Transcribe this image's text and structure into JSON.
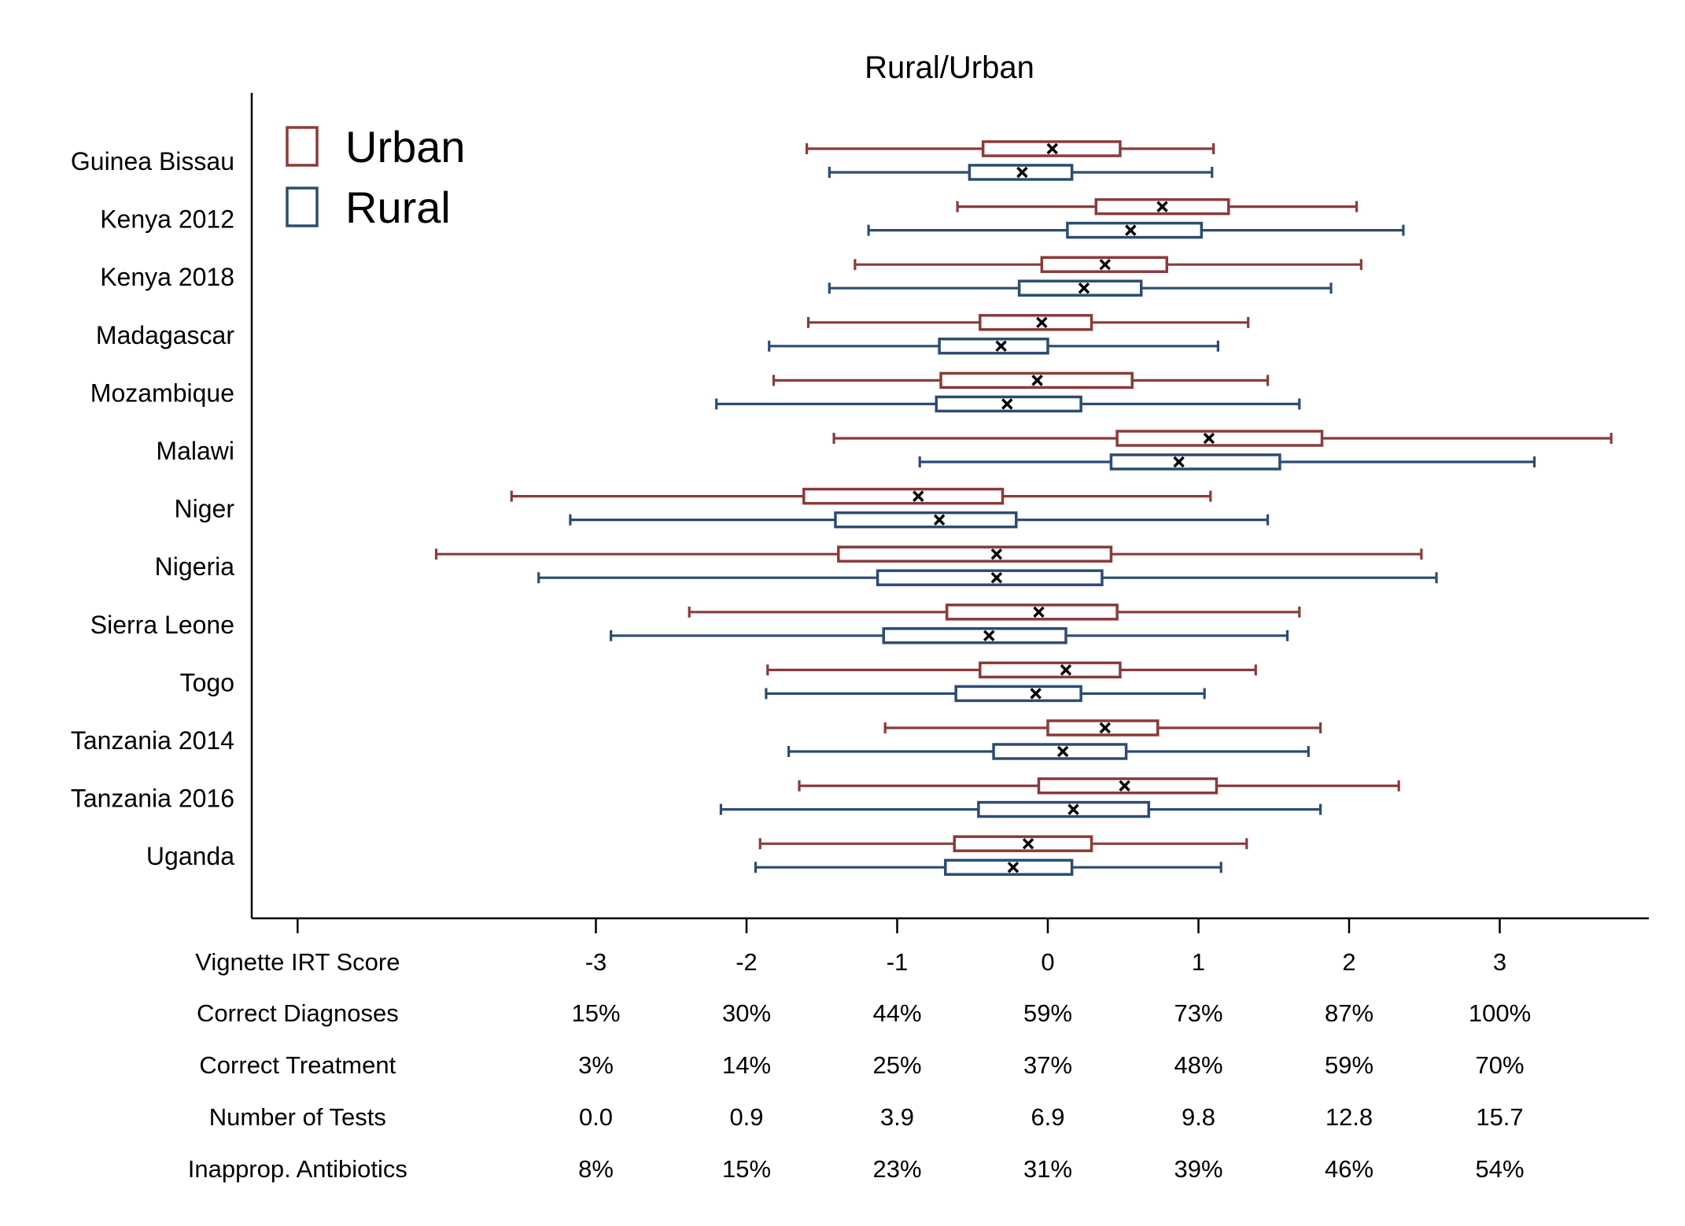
{
  "chart_data": {
    "type": "boxplot",
    "title": "Rural/Urban",
    "orientation": "horizontal",
    "xlim": [
      -4.98,
      4.3
    ],
    "colors": {
      "Urban": "#8b3a3a",
      "Rural": "#2b4c73"
    },
    "legend": {
      "placement": "top-left",
      "entries": [
        {
          "label": "Urban",
          "color": "#8b3a3a"
        },
        {
          "label": "Rural",
          "color": "#2b4c73"
        }
      ]
    },
    "marker": "x (mean)",
    "categories": [
      "Guinea Bissau",
      "Kenya 2012",
      "Kenya 2018",
      "Madagascar",
      "Mozambique",
      "Malawi",
      "Niger",
      "Nigeria",
      "Sierra Leone",
      "Togo",
      "Tanzania 2014",
      "Tanzania 2016",
      "Uganda"
    ],
    "series": [
      {
        "name": "Urban",
        "boxes": [
          {
            "whisker_low": -1.6,
            "q1": -0.43,
            "q3": 0.48,
            "whisker_high": 1.1,
            "mean": 0.03
          },
          {
            "whisker_low": -0.6,
            "q1": 0.32,
            "q3": 1.2,
            "whisker_high": 2.05,
            "mean": 0.76
          },
          {
            "whisker_low": -1.28,
            "q1": -0.04,
            "q3": 0.79,
            "whisker_high": 2.08,
            "mean": 0.38
          },
          {
            "whisker_low": -1.59,
            "q1": -0.45,
            "q3": 0.29,
            "whisker_high": 1.33,
            "mean": -0.04
          },
          {
            "whisker_low": -1.82,
            "q1": -0.71,
            "q3": 0.56,
            "whisker_high": 1.46,
            "mean": -0.07
          },
          {
            "whisker_low": -1.42,
            "q1": 0.46,
            "q3": 1.82,
            "whisker_high": 3.74,
            "mean": 1.07
          },
          {
            "whisker_low": -3.56,
            "q1": -1.62,
            "q3": -0.3,
            "whisker_high": 1.08,
            "mean": -0.86
          },
          {
            "whisker_low": -4.06,
            "q1": -1.39,
            "q3": 0.42,
            "whisker_high": 2.48,
            "mean": -0.34
          },
          {
            "whisker_low": -2.38,
            "q1": -0.67,
            "q3": 0.46,
            "whisker_high": 1.67,
            "mean": -0.06
          },
          {
            "whisker_low": -1.86,
            "q1": -0.45,
            "q3": 0.48,
            "whisker_high": 1.38,
            "mean": 0.12
          },
          {
            "whisker_low": -1.08,
            "q1": 0.0,
            "q3": 0.73,
            "whisker_high": 1.81,
            "mean": 0.38
          },
          {
            "whisker_low": -1.65,
            "q1": -0.06,
            "q3": 1.12,
            "whisker_high": 2.33,
            "mean": 0.51
          },
          {
            "whisker_low": -1.91,
            "q1": -0.62,
            "q3": 0.29,
            "whisker_high": 1.32,
            "mean": -0.13
          }
        ]
      },
      {
        "name": "Rural",
        "boxes": [
          {
            "whisker_low": -1.45,
            "q1": -0.52,
            "q3": 0.16,
            "whisker_high": 1.09,
            "mean": -0.17
          },
          {
            "whisker_low": -1.19,
            "q1": 0.13,
            "q3": 1.02,
            "whisker_high": 2.36,
            "mean": 0.55
          },
          {
            "whisker_low": -1.45,
            "q1": -0.19,
            "q3": 0.62,
            "whisker_high": 1.88,
            "mean": 0.24
          },
          {
            "whisker_low": -1.85,
            "q1": -0.72,
            "q3": 0.0,
            "whisker_high": 1.13,
            "mean": -0.31
          },
          {
            "whisker_low": -2.2,
            "q1": -0.74,
            "q3": 0.22,
            "whisker_high": 1.67,
            "mean": -0.27
          },
          {
            "whisker_low": -0.85,
            "q1": 0.42,
            "q3": 1.54,
            "whisker_high": 3.23,
            "mean": 0.87
          },
          {
            "whisker_low": -3.17,
            "q1": -1.41,
            "q3": -0.21,
            "whisker_high": 1.46,
            "mean": -0.72
          },
          {
            "whisker_low": -3.38,
            "q1": -1.13,
            "q3": 0.36,
            "whisker_high": 2.58,
            "mean": -0.34
          },
          {
            "whisker_low": -2.9,
            "q1": -1.09,
            "q3": 0.12,
            "whisker_high": 1.59,
            "mean": -0.39
          },
          {
            "whisker_low": -1.87,
            "q1": -0.61,
            "q3": 0.22,
            "whisker_high": 1.04,
            "mean": -0.08
          },
          {
            "whisker_low": -1.72,
            "q1": -0.36,
            "q3": 0.52,
            "whisker_high": 1.73,
            "mean": 0.1
          },
          {
            "whisker_low": -2.17,
            "q1": -0.46,
            "q3": 0.67,
            "whisker_high": 1.81,
            "mean": 0.17
          },
          {
            "whisker_low": -1.94,
            "q1": -0.68,
            "q3": 0.16,
            "whisker_high": 1.15,
            "mean": -0.23
          }
        ]
      }
    ],
    "x_axis": {
      "ticks": [
        -3,
        -2,
        -1,
        0,
        1,
        2,
        3
      ],
      "extra_ticks": [
        -4.98
      ],
      "tick_labels": [
        "-3",
        "-2",
        "-1",
        "0",
        "1",
        "2",
        "3"
      ]
    },
    "conversion_table": {
      "rows": [
        {
          "label": "Vignette IRT Score",
          "values": [
            "-3",
            "-2",
            "-1",
            "0",
            "1",
            "2",
            "3"
          ]
        },
        {
          "label": "Correct Diagnoses",
          "values": [
            "15%",
            "30%",
            "44%",
            "59%",
            "73%",
            "87%",
            "100%"
          ]
        },
        {
          "label": "Correct Treatment",
          "values": [
            "3%",
            "14%",
            "25%",
            "37%",
            "48%",
            "59%",
            "70%"
          ]
        },
        {
          "label": "Number of Tests",
          "values": [
            "0.0",
            "0.9",
            "3.9",
            "6.9",
            "9.8",
            "12.8",
            "15.7"
          ]
        },
        {
          "label": "Inapprop. Antibiotics",
          "values": [
            "8%",
            "15%",
            "23%",
            "31%",
            "39%",
            "46%",
            "54%"
          ]
        }
      ]
    }
  }
}
